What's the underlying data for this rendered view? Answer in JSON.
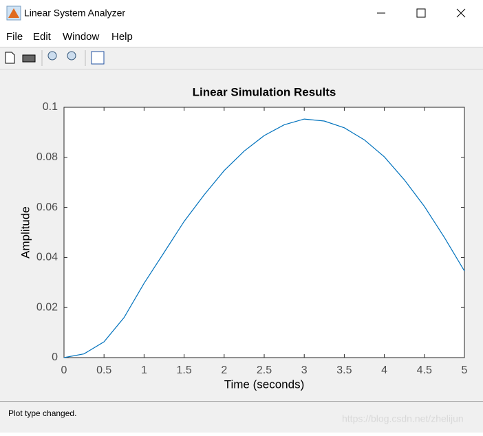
{
  "window": {
    "title": "Linear System Analyzer",
    "menu": [
      "File",
      "Edit",
      "Window",
      "Help"
    ],
    "status": "Plot type changed.",
    "watermark": "https://blog.csdn.net/zhelijun"
  },
  "chart_data": {
    "type": "line",
    "title": "Linear Simulation Results",
    "x_label": "Time (seconds)",
    "y_label": "Amplitude",
    "x": [
      0,
      0.25,
      0.5,
      0.75,
      1,
      1.25,
      1.5,
      1.75,
      2,
      2.25,
      2.5,
      2.75,
      3,
      3.25,
      3.5,
      3.75,
      4,
      4.25,
      4.5,
      4.75,
      5
    ],
    "series": [
      {
        "color": "#0072bd",
        "values": [
          0,
          0.0015,
          0.0063,
          0.016,
          0.0297,
          0.042,
          0.0544,
          0.065,
          0.0747,
          0.0825,
          0.0887,
          0.093,
          0.0953,
          0.0945,
          0.0918,
          0.087,
          0.0802,
          0.071,
          0.0604,
          0.048,
          0.0346
        ]
      }
    ],
    "xlim": [
      0,
      5
    ],
    "ylim": [
      0,
      0.1
    ],
    "xticks": [
      0,
      0.5,
      1,
      1.5,
      2,
      2.5,
      3,
      3.5,
      4,
      4.5,
      5
    ],
    "yticks": [
      0,
      0.02,
      0.04,
      0.06,
      0.08,
      0.1
    ],
    "box": true
  }
}
